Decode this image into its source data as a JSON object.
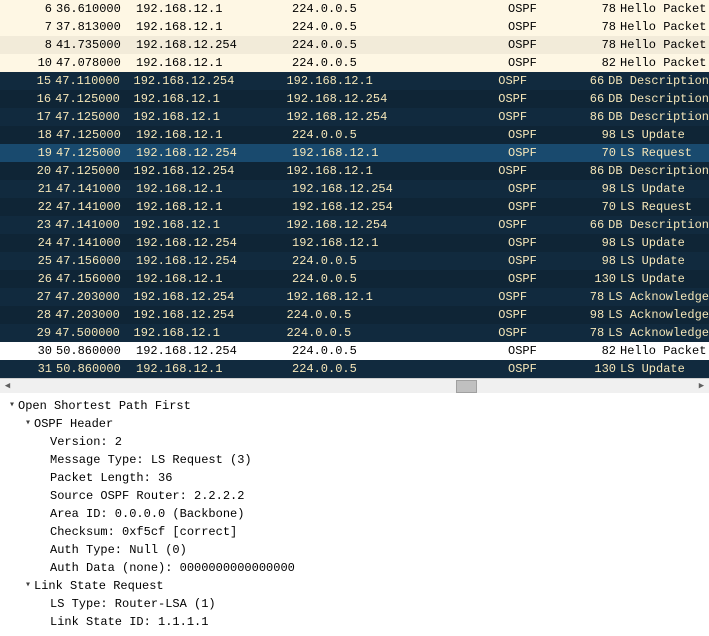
{
  "packets": [
    {
      "no": "6",
      "time": "36.610000",
      "src": "192.168.12.1",
      "dst": "224.0.0.5",
      "proto": "OSPF",
      "len": "78",
      "info": "Hello Packet",
      "cls": "light"
    },
    {
      "no": "7",
      "time": "37.813000",
      "src": "192.168.12.1",
      "dst": "224.0.0.5",
      "proto": "OSPF",
      "len": "78",
      "info": "Hello Packet",
      "cls": "light"
    },
    {
      "no": "8",
      "time": "41.735000",
      "src": "192.168.12.254",
      "dst": "224.0.0.5",
      "proto": "OSPF",
      "len": "78",
      "info": "Hello Packet",
      "cls": "light-alt"
    },
    {
      "no": "10",
      "time": "47.078000",
      "src": "192.168.12.1",
      "dst": "224.0.0.5",
      "proto": "OSPF",
      "len": "82",
      "info": "Hello Packet",
      "cls": "light"
    },
    {
      "no": "15",
      "time": "47.110000",
      "src": "192.168.12.254",
      "dst": "192.168.12.1",
      "proto": "OSPF",
      "len": "66",
      "info": "DB Description",
      "cls": "dark"
    },
    {
      "no": "16",
      "time": "47.125000",
      "src": "192.168.12.1",
      "dst": "192.168.12.254",
      "proto": "OSPF",
      "len": "66",
      "info": "DB Description",
      "cls": "dark-alt"
    },
    {
      "no": "17",
      "time": "47.125000",
      "src": "192.168.12.1",
      "dst": "192.168.12.254",
      "proto": "OSPF",
      "len": "86",
      "info": "DB Description",
      "cls": "dark"
    },
    {
      "no": "18",
      "time": "47.125000",
      "src": "192.168.12.1",
      "dst": "224.0.0.5",
      "proto": "OSPF",
      "len": "98",
      "info": "LS Update",
      "cls": "dark-alt"
    },
    {
      "no": "19",
      "time": "47.125000",
      "src": "192.168.12.254",
      "dst": "192.168.12.1",
      "proto": "OSPF",
      "len": "70",
      "info": "LS Request",
      "cls": "selected"
    },
    {
      "no": "20",
      "time": "47.125000",
      "src": "192.168.12.254",
      "dst": "192.168.12.1",
      "proto": "OSPF",
      "len": "86",
      "info": "DB Description",
      "cls": "dark-alt"
    },
    {
      "no": "21",
      "time": "47.141000",
      "src": "192.168.12.1",
      "dst": "192.168.12.254",
      "proto": "OSPF",
      "len": "98",
      "info": "LS Update",
      "cls": "dark"
    },
    {
      "no": "22",
      "time": "47.141000",
      "src": "192.168.12.1",
      "dst": "192.168.12.254",
      "proto": "OSPF",
      "len": "70",
      "info": "LS Request",
      "cls": "dark-alt"
    },
    {
      "no": "23",
      "time": "47.141000",
      "src": "192.168.12.1",
      "dst": "192.168.12.254",
      "proto": "OSPF",
      "len": "66",
      "info": "DB Description",
      "cls": "dark"
    },
    {
      "no": "24",
      "time": "47.141000",
      "src": "192.168.12.254",
      "dst": "192.168.12.1",
      "proto": "OSPF",
      "len": "98",
      "info": "LS Update",
      "cls": "dark-alt"
    },
    {
      "no": "25",
      "time": "47.156000",
      "src": "192.168.12.254",
      "dst": "224.0.0.5",
      "proto": "OSPF",
      "len": "98",
      "info": "LS Update",
      "cls": "dark"
    },
    {
      "no": "26",
      "time": "47.156000",
      "src": "192.168.12.1",
      "dst": "224.0.0.5",
      "proto": "OSPF",
      "len": "130",
      "info": "LS Update",
      "cls": "dark-alt"
    },
    {
      "no": "27",
      "time": "47.203000",
      "src": "192.168.12.254",
      "dst": "192.168.12.1",
      "proto": "OSPF",
      "len": "78",
      "info": "LS Acknowledge",
      "cls": "dark"
    },
    {
      "no": "28",
      "time": "47.203000",
      "src": "192.168.12.254",
      "dst": "224.0.0.5",
      "proto": "OSPF",
      "len": "98",
      "info": "LS Acknowledge",
      "cls": "dark-alt"
    },
    {
      "no": "29",
      "time": "47.500000",
      "src": "192.168.12.1",
      "dst": "224.0.0.5",
      "proto": "OSPF",
      "len": "78",
      "info": "LS Acknowledge",
      "cls": "dark"
    },
    {
      "no": "30",
      "time": "50.860000",
      "src": "192.168.12.254",
      "dst": "224.0.0.5",
      "proto": "OSPF",
      "len": "82",
      "info": "Hello Packet",
      "cls": "white"
    },
    {
      "no": "31",
      "time": "50.860000",
      "src": "192.168.12.1",
      "dst": "224.0.0.5",
      "proto": "OSPF",
      "len": "130",
      "info": "LS Update",
      "cls": "dark"
    }
  ],
  "details": {
    "root": "Open Shortest Path First",
    "header_label": "OSPF Header",
    "header_fields": [
      "Version: 2",
      "Message Type: LS Request (3)",
      "Packet Length: 36",
      "Source OSPF Router: 2.2.2.2",
      "Area ID: 0.0.0.0 (Backbone)",
      "Checksum: 0xf5cf [correct]",
      "Auth Type: Null (0)",
      "Auth Data (none): 0000000000000000"
    ],
    "lsr_label": "Link State Request",
    "lsr_fields": [
      "LS Type: Router-LSA (1)",
      "Link State ID: 1.1.1.1"
    ]
  },
  "scroll": {
    "thumb_left_pct": 65,
    "thumb_width_pct": 3
  },
  "colors": {
    "light_bg": "#fef7e4",
    "light_alt_bg": "#f2ebd9",
    "dark_bg": "#112a3e",
    "dark_alt_bg": "#0f2536",
    "selected_bg": "#194a6e",
    "dark_fg": "#f5e6b8",
    "white_bg": "#ffffff"
  }
}
